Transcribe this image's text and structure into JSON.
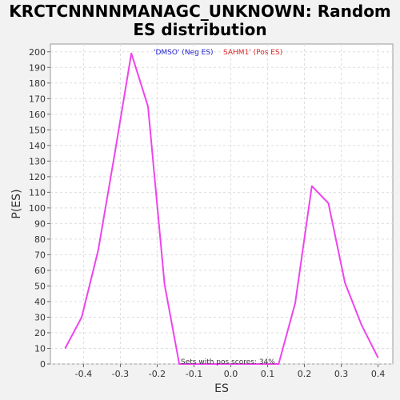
{
  "chart_data": {
    "type": "line",
    "title": "KRCTCNNNNMANAGC_UNKNOWN: Random ES distribution",
    "title_lines": [
      "KRCTCNNNNMANAGC_UNKNOWN: Random",
      "ES distribution"
    ],
    "xlabel": "ES",
    "ylabel": "P(ES)",
    "xlim": [
      -0.49,
      0.44
    ],
    "ylim": [
      0,
      205
    ],
    "x_ticks": [
      -0.4,
      -0.3,
      -0.2,
      -0.1,
      0.0,
      0.1,
      0.2,
      0.3,
      0.4
    ],
    "x_tick_labels": [
      "-0.4",
      "-0.3",
      "-0.2",
      "-0.1",
      "0.0",
      "0.1",
      "0.2",
      "0.3",
      "0.4"
    ],
    "y_ticks": [
      0,
      10,
      20,
      30,
      40,
      50,
      60,
      70,
      80,
      90,
      100,
      110,
      120,
      130,
      140,
      150,
      160,
      170,
      180,
      190,
      200
    ],
    "grid": true,
    "legend": {
      "placement": "top-center",
      "entries": [
        {
          "label": "'DMSO' (Neg ES)",
          "color": "#2222cc"
        },
        {
          "label": "SAHM1' (Pos ES)",
          "color": "#dd2222"
        }
      ]
    },
    "annotation": "Sets with pos scores: 34%",
    "line_color": "#ee44ee",
    "series": [
      {
        "x": [
          -0.45,
          -0.405,
          -0.36,
          -0.315,
          -0.27,
          -0.225,
          -0.18,
          -0.14,
          -0.1,
          0.0,
          0.1,
          0.13,
          0.175,
          0.22,
          0.265,
          0.31,
          0.355,
          0.4
        ],
        "values": [
          10,
          30,
          73,
          135,
          199,
          165,
          51,
          0,
          0,
          0,
          0,
          0,
          39,
          114,
          103,
          52,
          25,
          4
        ]
      }
    ]
  }
}
